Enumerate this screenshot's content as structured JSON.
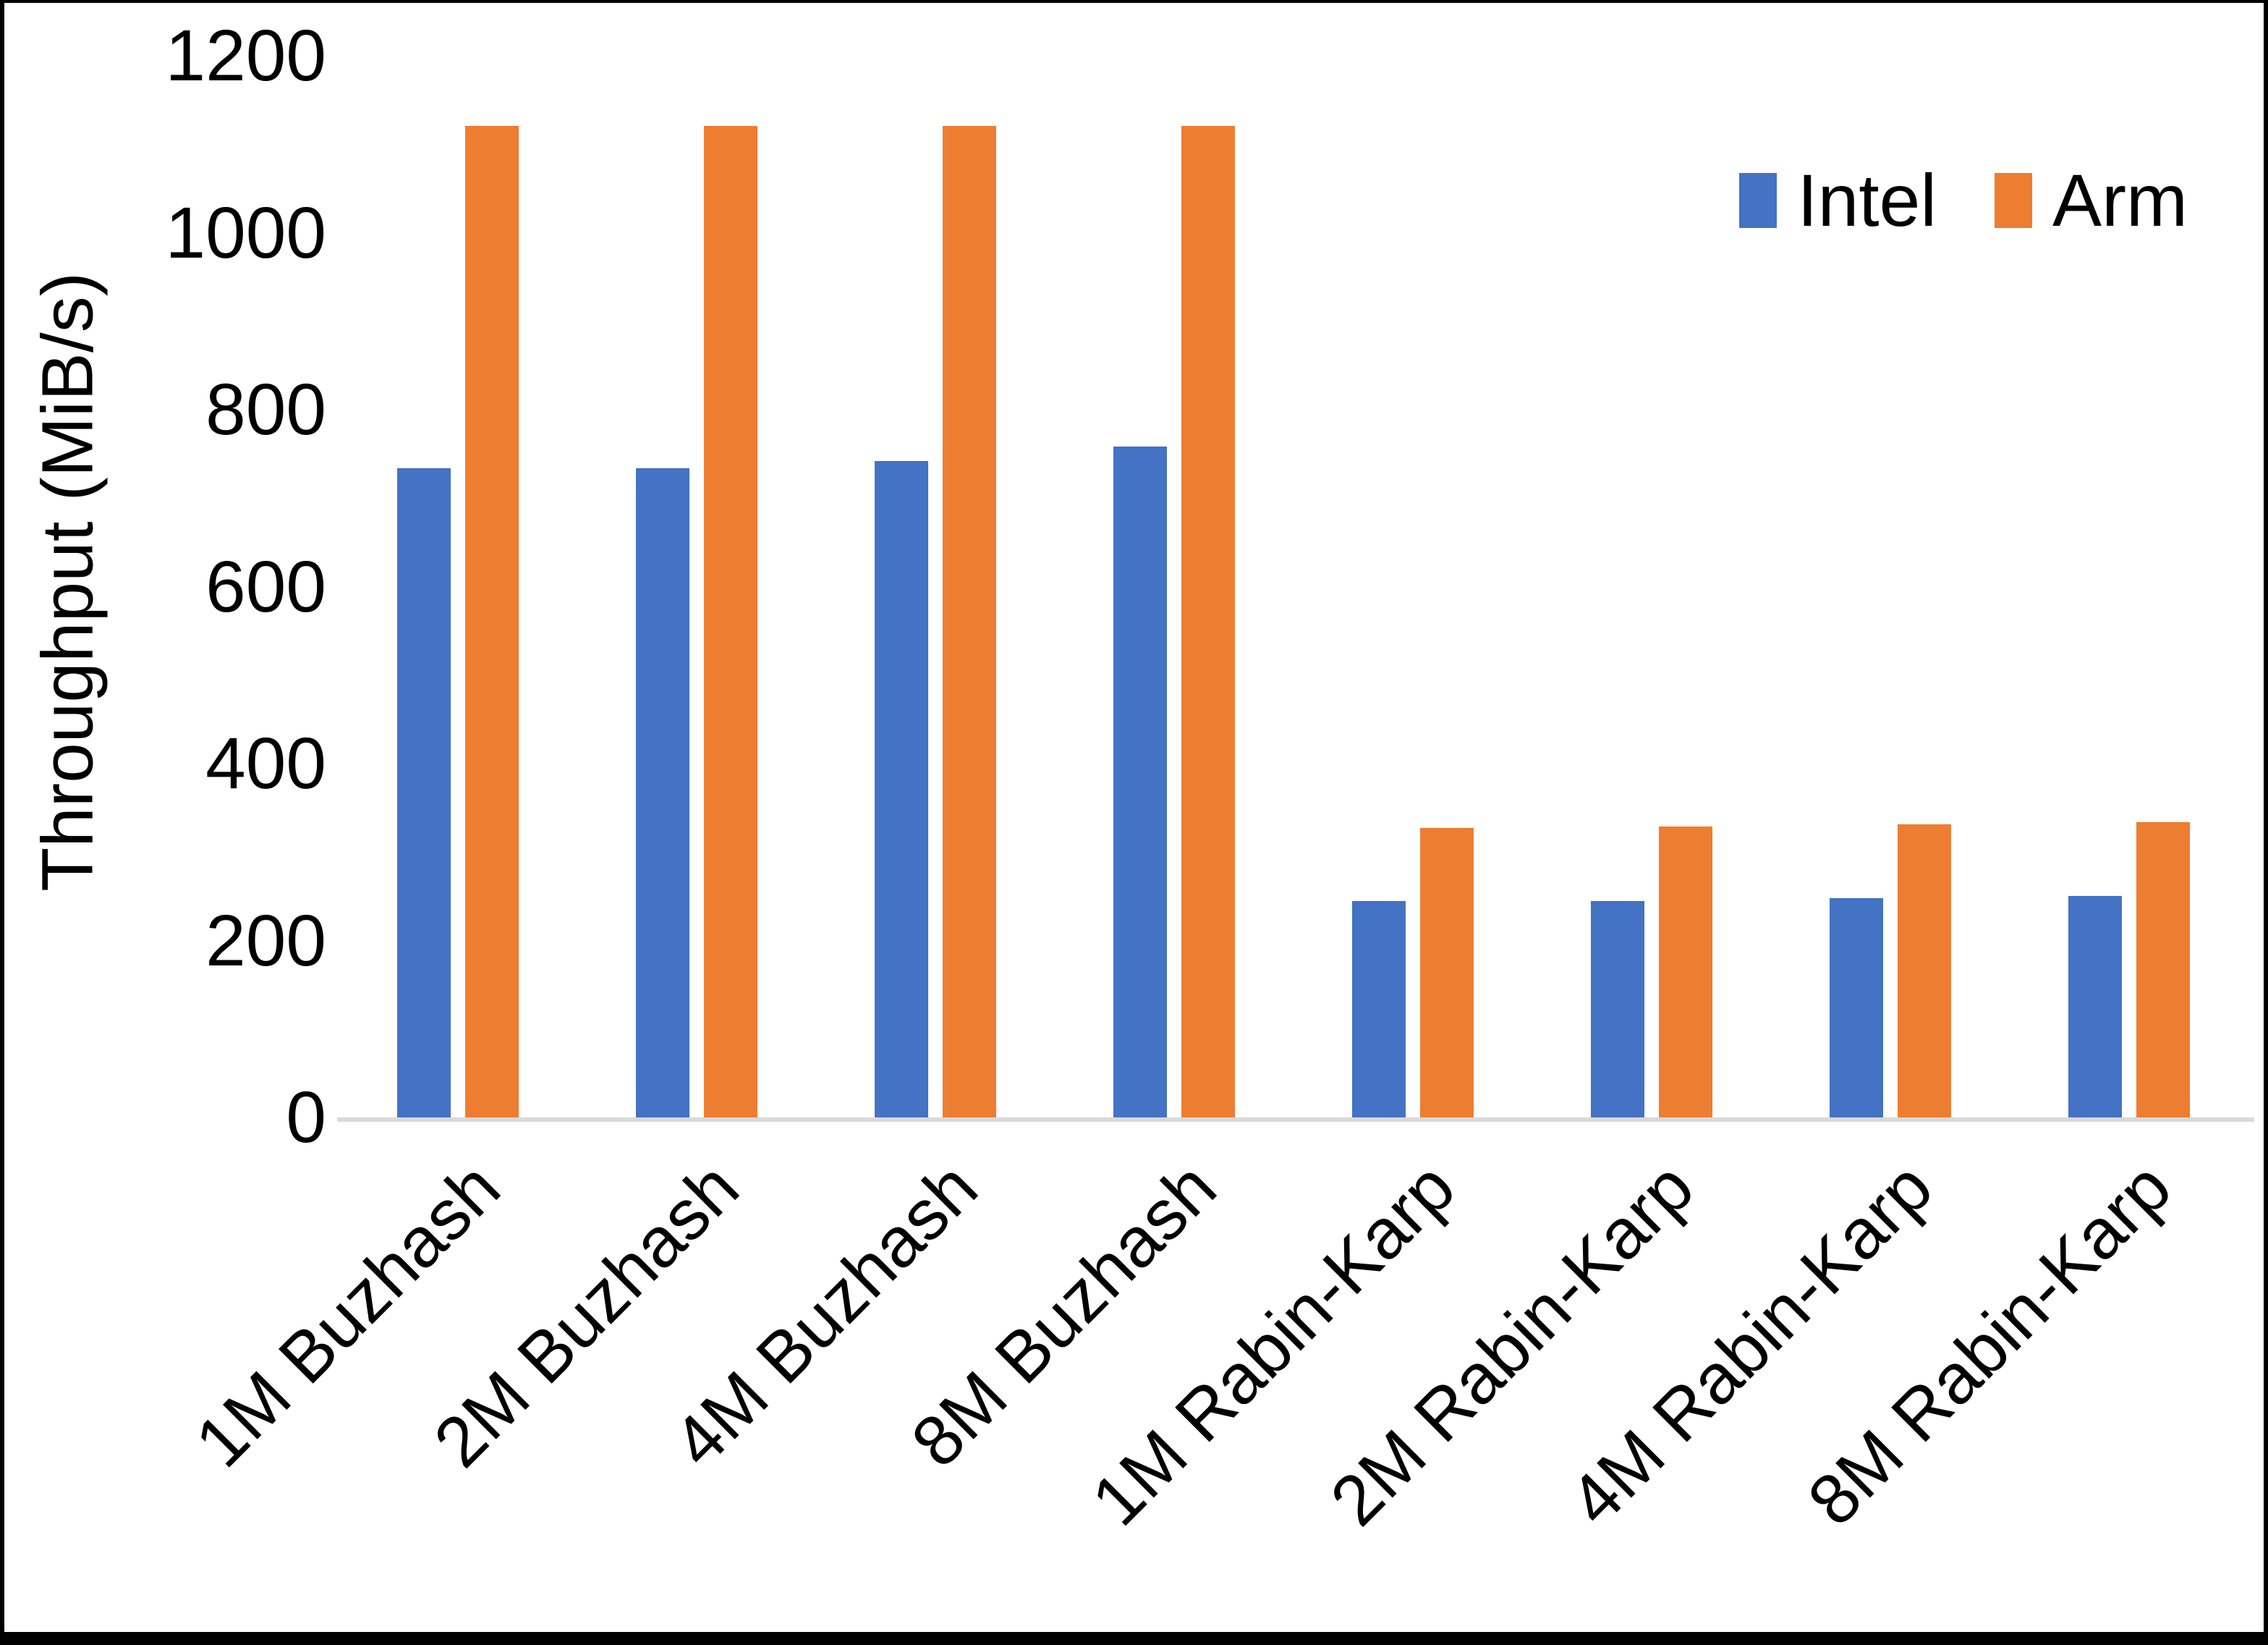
{
  "chart_data": {
    "type": "bar",
    "title": "",
    "xlabel": "",
    "ylabel": "Throughput (MiB/s)",
    "ylim": [
      0,
      1200
    ],
    "yticks": [
      0,
      200,
      400,
      600,
      800,
      1000,
      1200
    ],
    "grid": false,
    "legend_position": "top-right",
    "categories": [
      "1M Buzhash",
      "2M Buzhash",
      "4M Buzhash",
      "8M Buzhash",
      "1M Rabin-Karp",
      "2M Rabin-Karp",
      "4M Rabin-Karp",
      "8M Rabin-Karp"
    ],
    "series": [
      {
        "name": "Intel",
        "color": "#4472C4",
        "values": [
          734,
          734,
          742,
          758,
          245,
          245,
          248,
          250
        ]
      },
      {
        "name": "Arm",
        "color": "#ED7D31",
        "values": [
          1121,
          1121,
          1121,
          1121,
          327,
          329,
          331,
          334
        ]
      }
    ],
    "colors": {
      "axis_line": "#d9d9d9",
      "text": "#000000",
      "background": "#ffffff"
    }
  }
}
